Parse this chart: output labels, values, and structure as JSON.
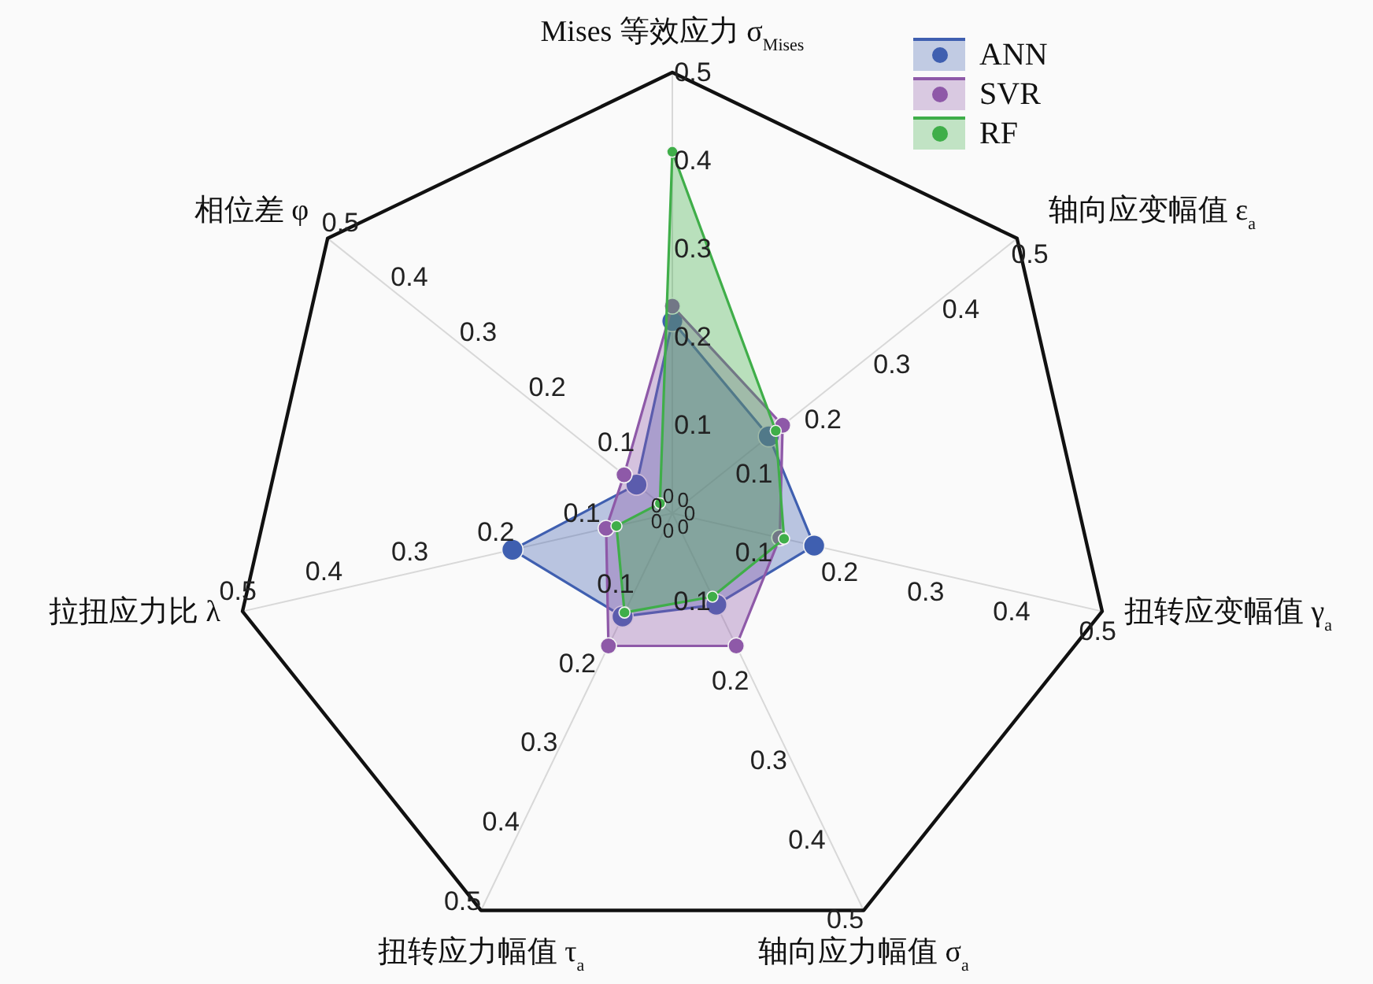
{
  "chart_data": {
    "type": "radar",
    "categories": [
      "Mises 等效应力 σ$_{Mises}$",
      "轴向应变幅值 ε$_{a}$",
      "扭转应变幅值 γ$_{a}$",
      "轴向应力幅值 σ$_{a}$",
      "扭转应力幅值 τ$_{a}$",
      "拉扭应力比 λ",
      "相位差 φ"
    ],
    "series": [
      {
        "name": "ANN",
        "color": "#3f5fb0",
        "values": [
          0.218,
          0.14,
          0.165,
          0.115,
          0.13,
          0.186,
          0.052
        ]
      },
      {
        "name": "SVR",
        "color": "#8e59a8",
        "values": [
          0.235,
          0.16,
          0.125,
          0.167,
          0.167,
          0.077,
          0.07
        ]
      },
      {
        "name": "RF",
        "color": "#3fae49",
        "values": [
          0.41,
          0.15,
          0.13,
          0.105,
          0.125,
          0.065,
          0.018
        ]
      }
    ],
    "ylim": [
      0,
      0.5
    ],
    "yticks": [
      0,
      0.1,
      0.2,
      0.3,
      0.4,
      0.5,
      0,
      0.1,
      0.2,
      0.3,
      0.4,
      0.5,
      0,
      0.1,
      0.2,
      0.3,
      0.4,
      0.5,
      0,
      0.1,
      0.2,
      0.3,
      0.4,
      0.5,
      0,
      0.1,
      0.2,
      0.3,
      0.4,
      0.5,
      0,
      0.1,
      0.2,
      0.3,
      0.4,
      0.5,
      0,
      0.1,
      0.2,
      0.3,
      0.4,
      0.5
    ],
    "grid": true,
    "legend": "top right",
    "marker": "circle"
  }
}
